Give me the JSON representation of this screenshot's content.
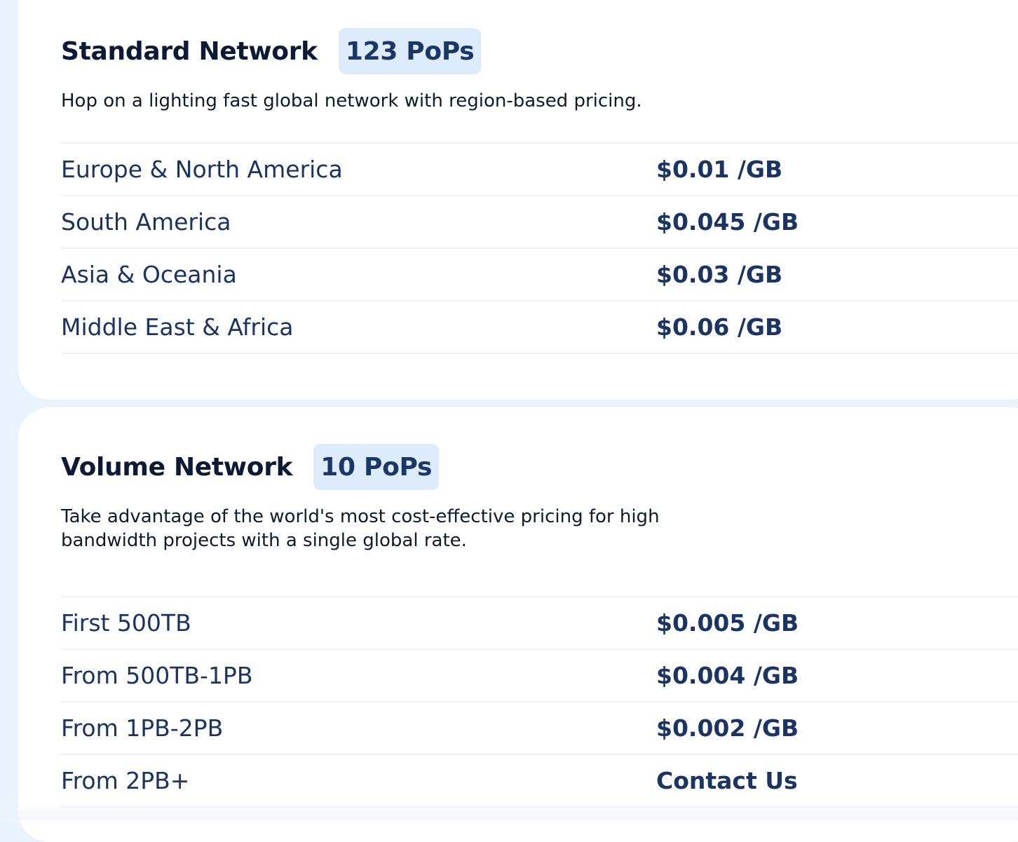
{
  "standard": {
    "title": "Standard Network",
    "badge": "123 PoPs",
    "description": "Hop on a lighting fast global network with region-based pricing.",
    "rows": [
      {
        "label": "Europe & North America",
        "price": "$0.01 /GB"
      },
      {
        "label": "South America",
        "price": "$0.045 /GB"
      },
      {
        "label": "Asia & Oceania",
        "price": "$0.03 /GB"
      },
      {
        "label": "Middle East & Africa",
        "price": "$0.06 /GB"
      }
    ]
  },
  "volume": {
    "title": "Volume Network",
    "badge": "10 PoPs",
    "description": "Take advantage of the world's most cost-effective pricing for high bandwidth projects with a single global rate.",
    "rows": [
      {
        "label": "First 500TB",
        "price": "$0.005 /GB"
      },
      {
        "label": "From 500TB-1PB",
        "price": "$0.004 /GB"
      },
      {
        "label": "From 1PB-2PB",
        "price": "$0.002 /GB"
      },
      {
        "label": "From 2PB+",
        "price": "Contact Us"
      }
    ]
  },
  "colors": {
    "background": "#e8f3fd",
    "card": "#ffffff",
    "badge_bg": "#dcecfd",
    "text_dark": "#0c1a33",
    "text_navy": "#1c3462"
  }
}
